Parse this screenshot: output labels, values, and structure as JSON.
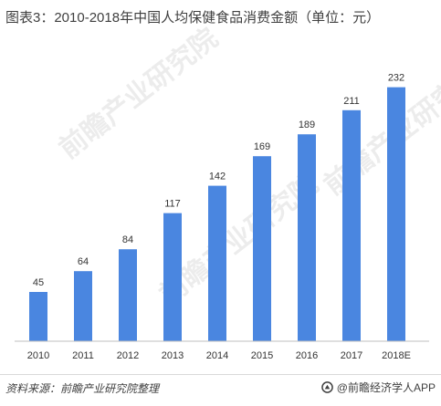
{
  "title": "图表3：2010-2018年中国人均保健食品消费金额（单位：元）",
  "source": "资料来源：前瞻产业研究院整理",
  "brand": "@前瞻经济学人APP",
  "watermark": "前瞻产业研究院",
  "colors": {
    "bar": "#4a86e0",
    "axis": "#bfbfbf",
    "text": "#404040"
  },
  "chart_data": {
    "type": "bar",
    "title": "图表3：2010-2018年中国人均保健食品消费金额（单位：元）",
    "categories": [
      "2010",
      "2011",
      "2012",
      "2013",
      "2014",
      "2015",
      "2016",
      "2017",
      "2018E"
    ],
    "values": [
      45,
      64,
      84,
      117,
      142,
      169,
      189,
      211,
      232
    ],
    "xlabel": "",
    "ylabel": "",
    "unit": "元",
    "ylim": [
      0,
      250
    ],
    "grid": false,
    "legend": "none",
    "data_labels": true
  }
}
